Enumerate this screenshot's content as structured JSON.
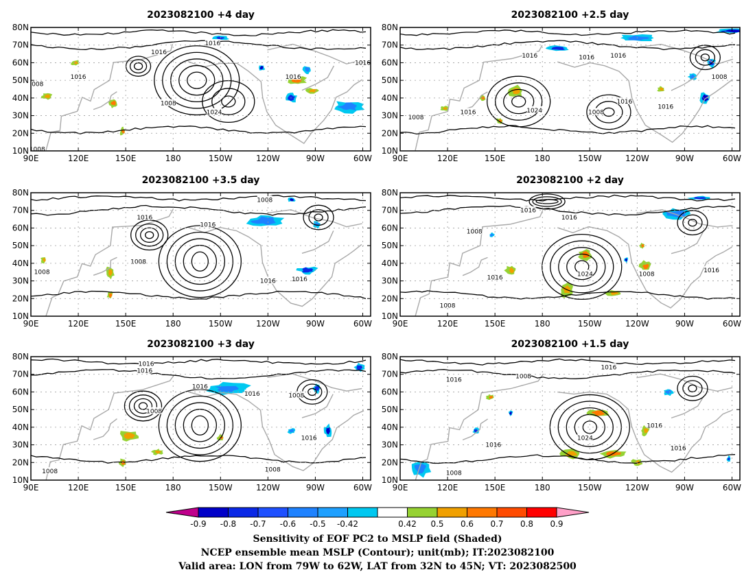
{
  "panels": [
    {
      "title": "2023082100 +4 day",
      "contour_labels": [
        "1008",
        "1016",
        "1016",
        "1016",
        "1016",
        "1024",
        "1008",
        "1016",
        "1008"
      ],
      "pos": [],
      "neg": []
    },
    {
      "title": "2023082100 +2.5 day",
      "contour_labels": [
        "1016",
        "1016",
        "1016",
        "1008",
        "1024",
        "1008",
        "1016",
        "1016",
        "1008",
        "1016"
      ],
      "pos": [],
      "neg": []
    },
    {
      "title": "2023082100 +3.5 day",
      "contour_labels": [
        "1016",
        "1016",
        "1008",
        "1008",
        "1008",
        "1016",
        "1016"
      ],
      "pos": [],
      "neg": []
    },
    {
      "title": "2023082100 +2 day",
      "contour_labels": [
        "1016",
        "1016",
        "1008",
        "1016",
        "1024",
        "1008",
        "1016",
        "1008"
      ],
      "pos": [],
      "neg": []
    },
    {
      "title": "2023082100 +3 day",
      "contour_labels": [
        "1016",
        "1016",
        "1016",
        "1016",
        "1008",
        "1008",
        "1016",
        "1008",
        "1008"
      ],
      "pos": [],
      "neg": []
    },
    {
      "title": "2023082100 +1.5 day",
      "contour_labels": [
        "1016",
        "1008",
        "1016",
        "1024",
        "1016",
        "1016",
        "1016",
        "1008"
      ],
      "pos": [],
      "neg": []
    }
  ],
  "axes": {
    "lon_ticks": [
      "90E",
      "120E",
      "150E",
      "180",
      "150W",
      "120W",
      "90W",
      "60W"
    ],
    "lat_ticks": [
      "10N",
      "20N",
      "30N",
      "40N",
      "50N",
      "60N",
      "70N",
      "80N"
    ]
  },
  "colorbar": {
    "labels": [
      "-0.9",
      "-0.8",
      "-0.7",
      "-0.6",
      "-0.5",
      "-0.42",
      "0.42",
      "0.5",
      "0.6",
      "0.7",
      "0.8",
      "0.9"
    ],
    "colors": [
      "#c0008c",
      "#0000c8",
      "#0a28e6",
      "#1e50ff",
      "#1e82ff",
      "#1ea0ff",
      "#00c8f0",
      "#ffffff",
      "#96d232",
      "#f0a000",
      "#ff7800",
      "#ff4b00",
      "#ff0000",
      "#ffa0c8"
    ]
  },
  "caption": {
    "line1": "Sensitivity of EOF PC2 to MSLP field (Shaded)",
    "line2": "NCEP ensemble mean MSLP (Contour); unit(mb); IT:2023082100",
    "line3": "Valid area: LON from 79W to 62W, LAT from 32N to 45N; VT: 2023082500"
  }
}
